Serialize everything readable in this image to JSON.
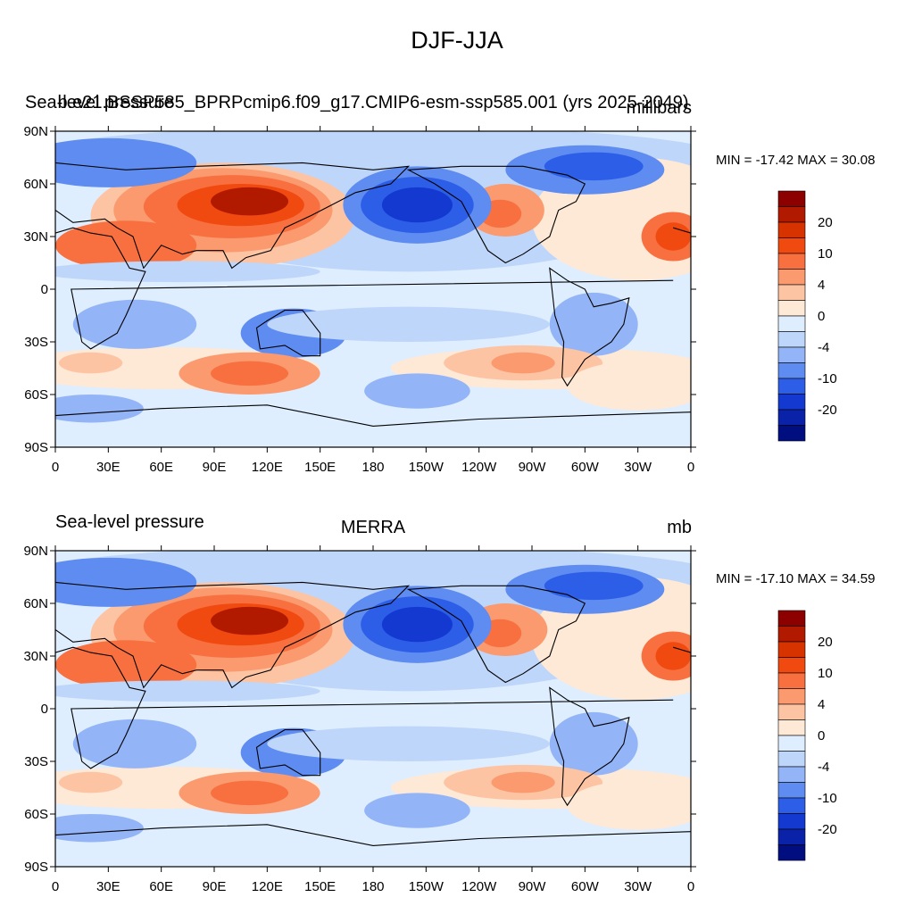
{
  "figure_title": "DJF-JJA",
  "chart_data": [
    {
      "type": "heatmap",
      "left_title": "Sea-level pressure",
      "center_title": "b.e21.BSSP585_BPRPcmip6.f09_g17.CMIP6-esm-ssp585.001 (yrs 2025-2049)",
      "units": "millibars",
      "min_max_label": "MIN = -17.42 MAX =  30.08",
      "min": -17.42,
      "max": 30.08,
      "x_ticks": [
        "0",
        "30E",
        "60E",
        "90E",
        "120E",
        "150E",
        "180",
        "150W",
        "120W",
        "90W",
        "60W",
        "30W",
        "0"
      ],
      "y_ticks": [
        "90N",
        "60N",
        "30N",
        "0",
        "30S",
        "60S",
        "90S"
      ],
      "colorbar_labels": [
        "20",
        "10",
        "4",
        "0",
        "-4",
        "-10",
        "-20"
      ],
      "grid": false
    },
    {
      "type": "heatmap",
      "left_title": "Sea-level pressure",
      "center_title": "MERRA",
      "units": "mb",
      "min_max_label": "MIN = -17.10 MAX =  34.59",
      "min": -17.1,
      "max": 34.59,
      "x_ticks": [
        "0",
        "30E",
        "60E",
        "90E",
        "120E",
        "150E",
        "180",
        "150W",
        "120W",
        "90W",
        "60W",
        "30W",
        "0"
      ],
      "y_ticks": [
        "90N",
        "60N",
        "30N",
        "0",
        "30S",
        "60S",
        "90S"
      ],
      "colorbar_labels": [
        "20",
        "10",
        "4",
        "0",
        "-4",
        "-10",
        "-20"
      ],
      "grid": false
    }
  ],
  "colors": {
    "palette": [
      "#8c0000",
      "#b21a00",
      "#d63300",
      "#f04a10",
      "#f87040",
      "#fa9a6e",
      "#fdc4a4",
      "#fee8d6",
      "#dfeeff",
      "#bfd6fb",
      "#93b4f6",
      "#5e8cf0",
      "#2d5ee8",
      "#1439d0",
      "#0a22a8",
      "#000e80"
    ]
  }
}
